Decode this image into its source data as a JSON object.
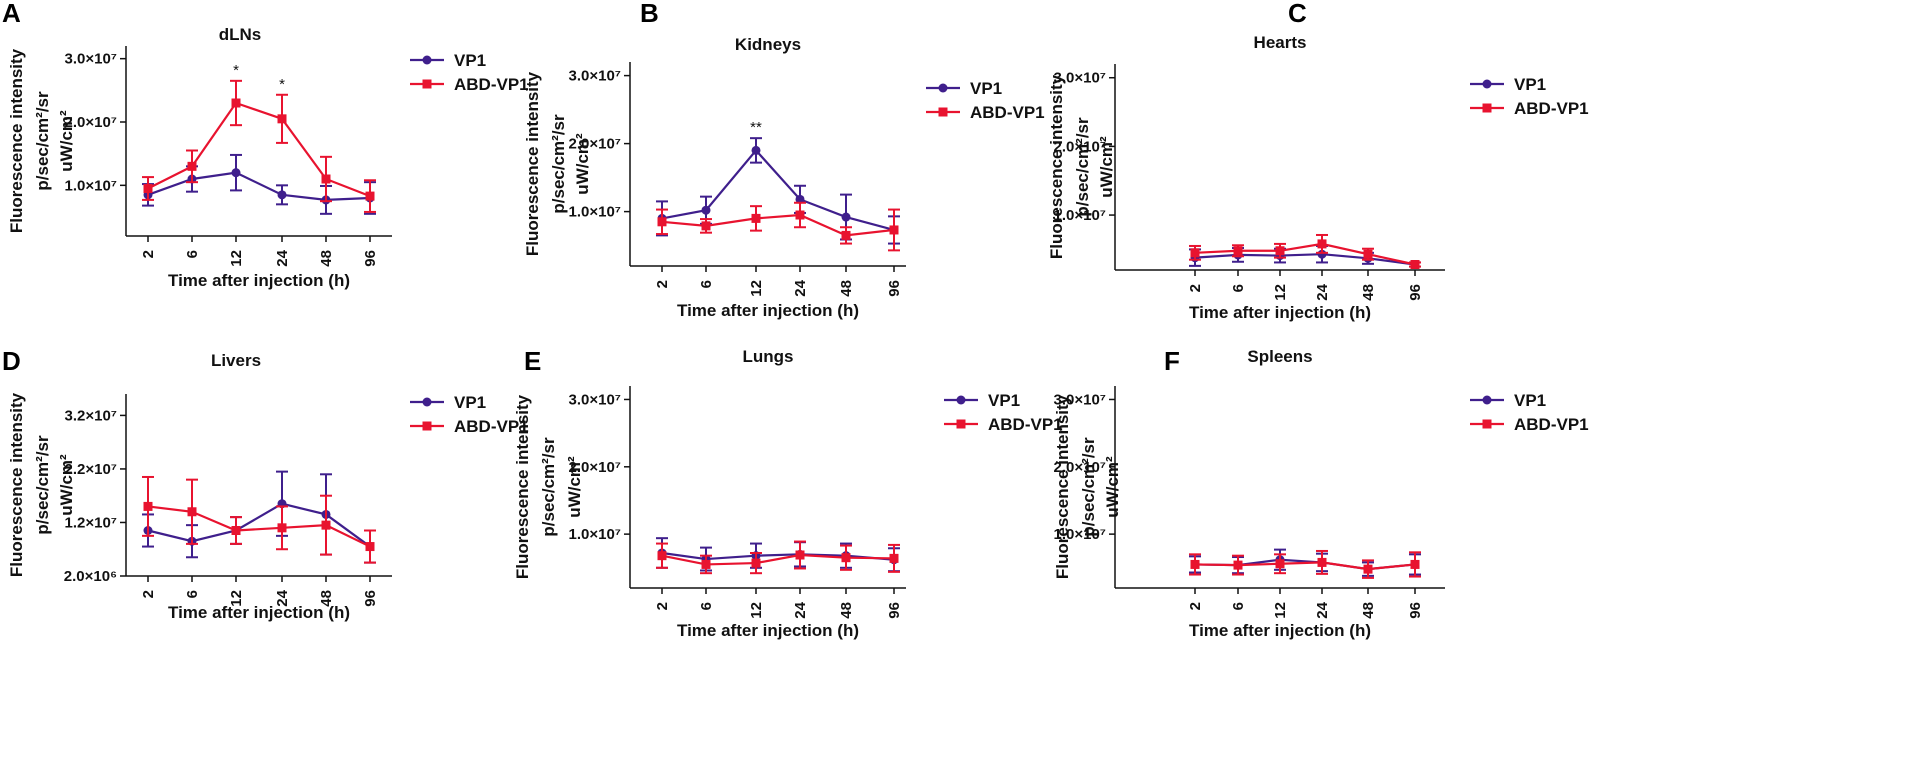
{
  "colors": {
    "vp1": "#3f1f8c",
    "abd_vp1": "#e8132f",
    "axis": "#111111"
  },
  "chart_data": [
    {
      "panel": "A",
      "type": "line",
      "title": "dLNs",
      "categories": [
        "2",
        "6",
        "12",
        "24",
        "48",
        "96"
      ],
      "xlabel": "Time after injection (h)",
      "ylabel": [
        "Fluorescence intensity",
        "p/sec/cm²/sr",
        "uW/cm²"
      ],
      "ylim": [
        2000000,
        32000000
      ],
      "yticks": [
        {
          "value": 10000000,
          "label": "1.0×10⁷"
        },
        {
          "value": 20000000,
          "label": "2.0×10⁷"
        },
        {
          "value": 30000000,
          "label": "3.0×10⁷"
        }
      ],
      "series": [
        {
          "name": "VP1",
          "values": [
            8500000,
            11000000,
            12000000,
            8500000,
            7700000,
            8000000
          ],
          "errors": [
            1700000,
            2000000,
            2800000,
            1500000,
            2200000,
            2500000
          ]
        },
        {
          "name": "ABD-VP1",
          "values": [
            9500000,
            13000000,
            23000000,
            20500000,
            11000000,
            8300000
          ],
          "errors": [
            1800000,
            2500000,
            3500000,
            3800000,
            3500000,
            2500000
          ]
        }
      ],
      "annotations": [
        {
          "category": "12",
          "text": "*"
        },
        {
          "category": "24",
          "text": "*"
        }
      ]
    },
    {
      "panel": "B",
      "type": "line",
      "title": "Kidneys",
      "categories": [
        "2",
        "6",
        "12",
        "24",
        "48",
        "96"
      ],
      "xlabel": "Time after injection (h)",
      "ylabel": [
        "Fluorescence intensity",
        "p/sec/cm²/sr",
        "uW/cm²"
      ],
      "ylim": [
        2000000,
        32000000
      ],
      "yticks": [
        {
          "value": 10000000,
          "label": "1.0×10⁷"
        },
        {
          "value": 20000000,
          "label": "2.0×10⁷"
        },
        {
          "value": 30000000,
          "label": "3.0×10⁷"
        }
      ],
      "series": [
        {
          "name": "VP1",
          "values": [
            9000000,
            10200000,
            19000000,
            11800000,
            9200000,
            7300000
          ],
          "errors": [
            2500000,
            2000000,
            1800000,
            2000000,
            3300000,
            2000000
          ]
        },
        {
          "name": "ABD-VP1",
          "values": [
            8500000,
            7900000,
            9000000,
            9500000,
            6500000,
            7300000
          ],
          "errors": [
            1800000,
            1000000,
            1800000,
            1800000,
            1200000,
            3000000
          ]
        }
      ],
      "annotations": [
        {
          "category": "12",
          "text": "**"
        }
      ]
    },
    {
      "panel": "C",
      "type": "line",
      "title": "Hearts",
      "categories": [
        "2",
        "6",
        "12",
        "24",
        "48",
        "96"
      ],
      "xlabel": "Time after injection (h)",
      "ylabel": [
        "Fluorescence intensity",
        "p/sec/cm²/sr",
        "uW/cm²"
      ],
      "ylim": [
        2000000,
        32000000
      ],
      "yticks": [
        {
          "value": 10000000,
          "label": "1.0×10⁷"
        },
        {
          "value": 20000000,
          "label": "2.0×10⁷"
        },
        {
          "value": 30000000,
          "label": "3.0×10⁷"
        }
      ],
      "series": [
        {
          "name": "VP1",
          "values": [
            3800000,
            4200000,
            4100000,
            4300000,
            3700000,
            2800000
          ],
          "errors": [
            1200000,
            1000000,
            1000000,
            1200000,
            800000,
            300000
          ]
        },
        {
          "name": "ABD-VP1",
          "values": [
            4500000,
            4800000,
            4800000,
            5800000,
            4300000,
            2800000
          ],
          "errors": [
            1000000,
            800000,
            1000000,
            1300000,
            800000,
            300000
          ]
        }
      ],
      "annotations": []
    },
    {
      "panel": "D",
      "type": "line",
      "title": "Livers",
      "categories": [
        "2",
        "6",
        "12",
        "24",
        "48",
        "96"
      ],
      "xlabel": "Time after injection (h)",
      "ylabel": [
        "Fluorescence intensity",
        "p/sec/cm²/sr",
        "uW/cm²"
      ],
      "ylim": [
        2000000,
        36000000
      ],
      "yticks": [
        {
          "value": 2000000,
          "label": "2.0×10⁶"
        },
        {
          "value": 12000000,
          "label": "1.2×10⁷"
        },
        {
          "value": 22000000,
          "label": "2.2×10⁷"
        },
        {
          "value": 32000000,
          "label": "3.2×10⁷"
        }
      ],
      "series": [
        {
          "name": "VP1",
          "values": [
            10500000,
            8500000,
            10500000,
            15500000,
            13500000,
            7500000
          ],
          "errors": [
            3000000,
            3000000,
            2500000,
            6000000,
            7500000,
            3000000
          ]
        },
        {
          "name": "ABD-VP1",
          "values": [
            15000000,
            14000000,
            10500000,
            11000000,
            11500000,
            7500000
          ],
          "errors": [
            5500000,
            6000000,
            2500000,
            4000000,
            5500000,
            3000000
          ]
        }
      ],
      "annotations": []
    },
    {
      "panel": "E",
      "type": "line",
      "title": "Lungs",
      "categories": [
        "2",
        "6",
        "12",
        "24",
        "48",
        "96"
      ],
      "xlabel": "Time after injection (h)",
      "ylabel": [
        "Fluorescence intensity",
        "p/sec/cm²/sr",
        "uW/cm²"
      ],
      "ylim": [
        2000000,
        32000000
      ],
      "yticks": [
        {
          "value": 10000000,
          "label": "1.0×10⁷"
        },
        {
          "value": 20000000,
          "label": "2.0×10⁷"
        },
        {
          "value": 30000000,
          "label": "3.0×10⁷"
        }
      ],
      "series": [
        {
          "name": "VP1",
          "values": [
            7200000,
            6300000,
            6800000,
            7000000,
            6800000,
            6200000
          ],
          "errors": [
            2200000,
            1700000,
            1800000,
            1800000,
            1800000,
            1700000
          ]
        },
        {
          "name": "ABD-VP1",
          "values": [
            6800000,
            5500000,
            5700000,
            6900000,
            6500000,
            6400000
          ],
          "errors": [
            1800000,
            1300000,
            1500000,
            2000000,
            1800000,
            2000000
          ]
        }
      ],
      "annotations": []
    },
    {
      "panel": "F",
      "type": "line",
      "title": "Spleens",
      "categories": [
        "2",
        "6",
        "12",
        "24",
        "48",
        "96"
      ],
      "xlabel": "Time after injection (h)",
      "ylabel": [
        "Fluorescence intensity",
        "p/sec/cm²/sr",
        "uW/cm²"
      ],
      "ylim": [
        2000000,
        32000000
      ],
      "yticks": [
        {
          "value": 10000000,
          "label": "1.0×10⁷"
        },
        {
          "value": 20000000,
          "label": "2.0×10⁷"
        },
        {
          "value": 30000000,
          "label": "3.0×10⁷"
        }
      ],
      "series": [
        {
          "name": "VP1",
          "values": [
            5500000,
            5400000,
            6200000,
            5800000,
            4800000,
            5500000
          ],
          "errors": [
            1200000,
            1200000,
            1500000,
            1300000,
            1000000,
            1500000
          ]
        },
        {
          "name": "ABD-VP1",
          "values": [
            5500000,
            5400000,
            5600000,
            5800000,
            4800000,
            5500000
          ],
          "errors": [
            1500000,
            1400000,
            1400000,
            1700000,
            1300000,
            1800000
          ]
        }
      ],
      "annotations": []
    }
  ]
}
